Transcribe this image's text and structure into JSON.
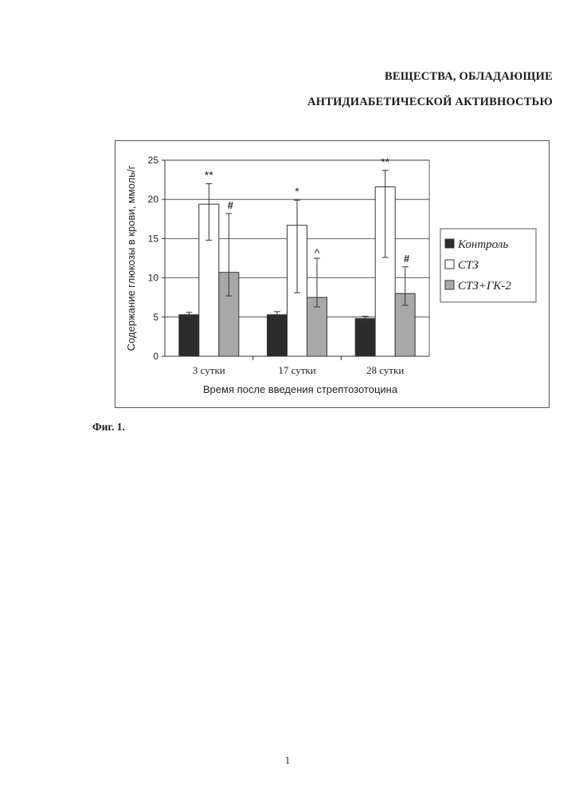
{
  "document": {
    "title_line1": "ВЕЩЕСТВА, ОБЛАДАЮЩИЕ",
    "title_line2": "АНТИДИАБЕТИЧЕСКОЙ АКТИВНОСТЬЮ",
    "figure_caption": "Фиг. 1.",
    "page_number": "1"
  },
  "chart_data": {
    "type": "bar",
    "categories": [
      "3 сутки",
      "17 сутки",
      "28 сутки"
    ],
    "series": [
      {
        "name": "Контроль",
        "color": "#2b2b2b",
        "values": [
          5.3,
          5.3,
          4.8
        ],
        "errors": [
          0.3,
          0.4,
          0.3
        ]
      },
      {
        "name": "СТЗ",
        "color": "#ffffff",
        "values": [
          19.4,
          16.7,
          21.6
        ],
        "errors": [
          2.6,
          3.2,
          2.1
        ],
        "error_low": [
          4.6,
          8.6,
          9.0
        ]
      },
      {
        "name": "СТЗ+ГК-2",
        "color": "#a8a8a8",
        "values": [
          10.7,
          7.5,
          8.0
        ],
        "errors": [
          7.5,
          5.0,
          3.4
        ],
        "error_low": [
          3.0,
          1.2,
          1.5
        ]
      }
    ],
    "annotations": [
      {
        "category": 0,
        "series": 1,
        "text": "**"
      },
      {
        "category": 0,
        "series": 2,
        "text": "#"
      },
      {
        "category": 1,
        "series": 1,
        "text": "*"
      },
      {
        "category": 1,
        "series": 2,
        "text": "^"
      },
      {
        "category": 2,
        "series": 1,
        "text": "**"
      },
      {
        "category": 2,
        "series": 2,
        "text": "#"
      }
    ],
    "xlabel": "Время после введения стрептозотоцина",
    "ylabel": "Содержание глюкозы в крови, ммоль/г",
    "ylim": [
      0,
      25
    ],
    "yticks": [
      0,
      5,
      10,
      15,
      20,
      25
    ],
    "grid": true,
    "legend_position": "right"
  }
}
